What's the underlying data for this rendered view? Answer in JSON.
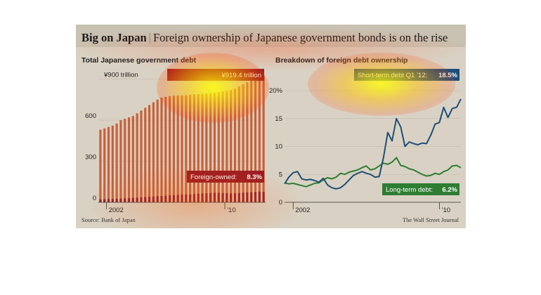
{
  "headline": {
    "brand": "Big on Japan",
    "separator": "|",
    "text": "Foreign ownership of Japanese government bonds is on the rise"
  },
  "footer": {
    "source": "Source: Bank of Japan",
    "credit": "The Wall Street Journal"
  },
  "colors": {
    "total_bar": "#c8603a",
    "foreign_bar": "#9c1c22",
    "short_term_line": "#1f4e79",
    "long_term_line": "#2e7d32",
    "background": "#d9d2c4"
  },
  "chart_data": [
    {
      "type": "bar",
      "title": "Total Japanese government debt",
      "ylim": [
        0,
        1000
      ],
      "yticks": [
        0,
        300,
        600,
        900
      ],
      "ytick_labels": [
        "0",
        "300",
        "600",
        "¥900 trillion"
      ],
      "xtick_labels": [
        "2002",
        "’10"
      ],
      "callouts": {
        "total": "¥919.4 trillion",
        "foreign_label": "Foreign-owned:",
        "foreign_value": "8.3%"
      },
      "series": [
        {
          "name": "Total",
          "values": [
            530,
            540,
            550,
            560,
            575,
            600,
            610,
            620,
            630,
            650,
            670,
            690,
            710,
            730,
            750,
            765,
            770,
            775,
            778,
            780,
            780,
            782,
            785,
            788,
            790,
            792,
            795,
            798,
            800,
            805,
            810,
            815,
            820,
            830,
            845,
            860,
            875,
            890,
            905,
            915,
            919.4
          ]
        },
        {
          "name": "Foreign-owned",
          "values": [
            22,
            23,
            24,
            25,
            26,
            27,
            28,
            30,
            32,
            34,
            36,
            38,
            40,
            42,
            44,
            46,
            48,
            50,
            52,
            54,
            55,
            57,
            58,
            60,
            62,
            64,
            66,
            68,
            70,
            70,
            68,
            66,
            64,
            66,
            68,
            70,
            72,
            74,
            76,
            78,
            76
          ]
        }
      ]
    },
    {
      "type": "line",
      "title": "Breakdown of foreign debt ownership",
      "ylim": [
        0,
        20
      ],
      "yticks": [
        0,
        5,
        10,
        15,
        20
      ],
      "ytick_labels": [
        "0",
        "5",
        "10",
        "15",
        "20%"
      ],
      "xtick_labels": [
        "2002",
        "’10"
      ],
      "callouts": {
        "short_label": "Short-term debt Q1 ’12:",
        "short_value": "18.5%",
        "long_label": "Long-term debt:",
        "long_value": "6.2%"
      },
      "series": [
        {
          "name": "Short-term debt",
          "values": [
            3.3,
            4.5,
            5.3,
            5.5,
            4.2,
            4.0,
            4.1,
            3.9,
            3.6,
            4.3,
            3.1,
            2.6,
            2.4,
            2.6,
            3.2,
            4.0,
            4.8,
            5.2,
            5.5,
            5.2,
            5.0,
            4.5,
            4.6,
            8.0,
            12.5,
            11.0,
            15.0,
            13.5,
            10.0,
            10.8,
            10.5,
            10.3,
            10.6,
            10.5,
            12.0,
            14.0,
            14.3,
            17.0,
            15.2,
            16.8,
            17.0,
            18.5
          ]
        },
        {
          "name": "Long-term debt",
          "values": [
            3.5,
            3.3,
            3.4,
            3.2,
            3.0,
            2.8,
            3.1,
            3.4,
            3.5,
            4.0,
            4.4,
            4.2,
            4.5,
            5.2,
            5.0,
            5.4,
            5.6,
            5.8,
            6.2,
            6.5,
            5.8,
            6.0,
            6.5,
            7.0,
            6.8,
            7.2,
            8.0,
            6.6,
            6.4,
            6.0,
            5.8,
            5.4,
            5.0,
            4.7,
            4.8,
            5.2,
            5.0,
            5.5,
            5.8,
            6.5,
            6.6,
            6.2
          ]
        }
      ]
    }
  ]
}
